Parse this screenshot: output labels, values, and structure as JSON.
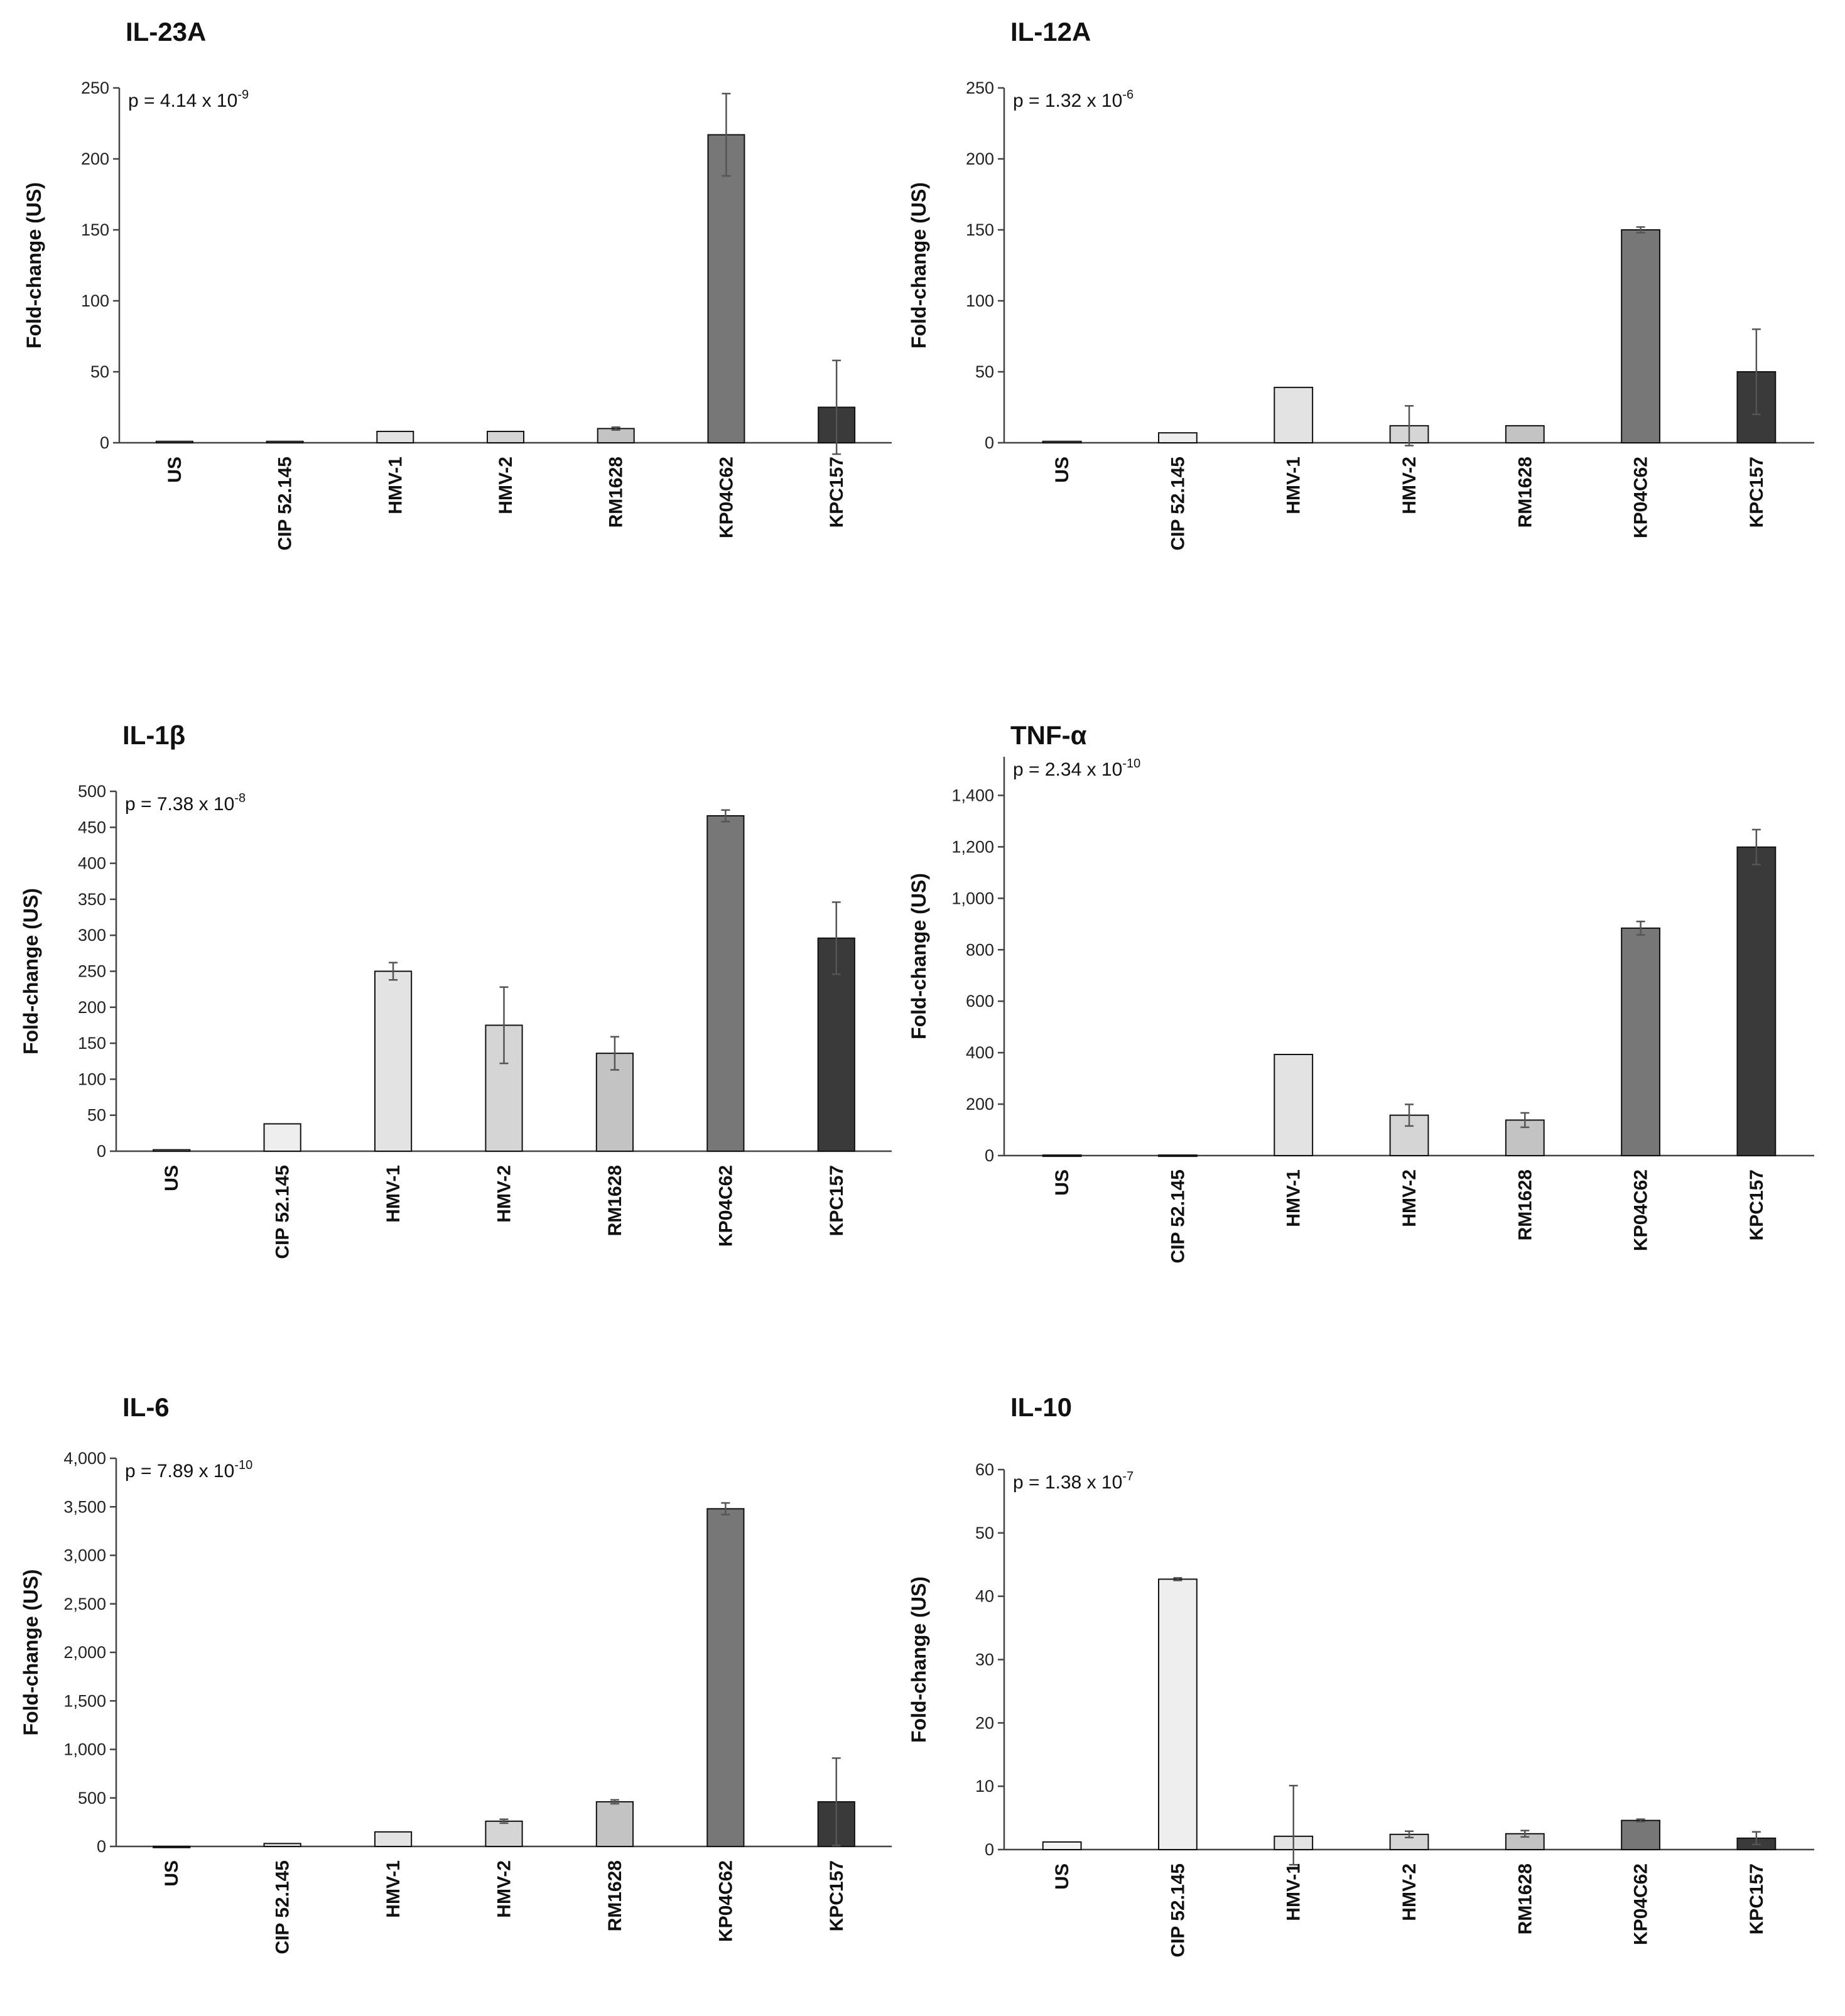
{
  "chart_data": [
    {
      "type": "bar",
      "title": "IL-23A",
      "ylabel": "Fold-change (US)",
      "annotation": {
        "base": "p = 4.14 x 10",
        "exponent": "-9"
      },
      "categories": [
        "US",
        "CIP 52.145",
        "HMV-1",
        "HMV-2",
        "RM1628",
        "KP04C62",
        "KPC157"
      ],
      "values": [
        1,
        1,
        8,
        8,
        10,
        217,
        25
      ],
      "errors": [
        0,
        0,
        0,
        0,
        1,
        29,
        33
      ],
      "ylim": [
        0,
        250
      ],
      "yticks": [
        0,
        50,
        100,
        150,
        200,
        250
      ],
      "ytick_labels": [
        "0",
        "50",
        "100",
        "150",
        "200",
        "250"
      ],
      "bar_colors": [
        "#f3f3f3",
        "#eeeeee",
        "#e3e3e3",
        "#d5d5d5",
        "#c3c3c3",
        "#777777",
        "#3a3a3a"
      ]
    },
    {
      "type": "bar",
      "title": "IL-12A",
      "ylabel": "Fold-change (US)",
      "annotation": {
        "base": "p = 1.32 x 10",
        "exponent": "-6"
      },
      "categories": [
        "US",
        "CIP 52.145",
        "HMV-1",
        "HMV-2",
        "RM1628",
        "KP04C62",
        "KPC157"
      ],
      "values": [
        1,
        7,
        39,
        12,
        12,
        150,
        50
      ],
      "errors": [
        0,
        0,
        0,
        14,
        0,
        2,
        30
      ],
      "ylim": [
        0,
        250
      ],
      "yticks": [
        0,
        50,
        100,
        150,
        200,
        250
      ],
      "ytick_labels": [
        "0",
        "50",
        "100",
        "150",
        "200",
        "250"
      ],
      "bar_colors": [
        "#f3f3f3",
        "#eeeeee",
        "#e3e3e3",
        "#d5d5d5",
        "#c3c3c3",
        "#777777",
        "#3a3a3a"
      ]
    },
    {
      "type": "bar",
      "title": "IL-1β",
      "ylabel": "Fold-change (US)",
      "annotation": {
        "base": "p = 7.38 x 10",
        "exponent": "-8"
      },
      "categories": [
        "US",
        "CIP 52.145",
        "HMV-1",
        "HMV-2",
        "RM1628",
        "KP04C62",
        "KPC157"
      ],
      "values": [
        2,
        38,
        250,
        175,
        136,
        466,
        296
      ],
      "errors": [
        0,
        0,
        12,
        53,
        23,
        8,
        50
      ],
      "ylim": [
        0,
        500
      ],
      "yticks": [
        0,
        50,
        100,
        150,
        200,
        250,
        300,
        350,
        400,
        450,
        500
      ],
      "ytick_labels": [
        "0",
        "50",
        "100",
        "150",
        "200",
        "250",
        "300",
        "350",
        "400",
        "450",
        "500"
      ],
      "bar_colors": [
        "#f3f3f3",
        "#eeeeee",
        "#e3e3e3",
        "#d5d5d5",
        "#c3c3c3",
        "#777777",
        "#3a3a3a"
      ]
    },
    {
      "type": "bar",
      "title": "TNF-α",
      "ylabel": "Fold-change (US)",
      "annotation": {
        "base": "p = 2.34 x 10",
        "exponent": "-10"
      },
      "categories": [
        "US",
        "CIP 52.145",
        "HMV-1",
        "HMV-2",
        "RM1628",
        "KP04C62",
        "KPC157"
      ],
      "values": [
        2,
        2,
        393,
        157,
        138,
        884,
        1199
      ],
      "errors": [
        0,
        0,
        0,
        42,
        28,
        26,
        68
      ],
      "ylim": [
        0,
        1550
      ],
      "yticks": [
        0,
        200,
        400,
        600,
        800,
        1000,
        1200,
        1400
      ],
      "ytick_labels": [
        "0",
        "200",
        "400",
        "600",
        "800",
        "1,000",
        "1,200",
        "1,400"
      ],
      "bar_colors": [
        "#f3f3f3",
        "#eeeeee",
        "#e3e3e3",
        "#d5d5d5",
        "#c3c3c3",
        "#777777",
        "#3a3a3a"
      ]
    },
    {
      "type": "bar",
      "title": "IL-6",
      "ylabel": "Fold-change (US)",
      "annotation": {
        "base": "p = 7.89 x 10",
        "exponent": "-10"
      },
      "categories": [
        "US",
        "CIP 52.145",
        "HMV-1",
        "HMV-2",
        "RM1628",
        "KP04C62",
        "KPC157"
      ],
      "values": [
        1,
        30,
        150,
        260,
        460,
        3480,
        460
      ],
      "errors": [
        0,
        0,
        0,
        20,
        20,
        60,
        450
      ],
      "ylim": [
        0,
        4000
      ],
      "yticks": [
        0,
        500,
        1000,
        1500,
        2000,
        2500,
        3000,
        3500,
        4000
      ],
      "ytick_labels": [
        "0",
        "500",
        "1,000",
        "1,500",
        "2,000",
        "2,500",
        "3,000",
        "3,500",
        "4,000"
      ],
      "bar_colors": [
        "#f3f3f3",
        "#eeeeee",
        "#e3e3e3",
        "#d5d5d5",
        "#c3c3c3",
        "#777777",
        "#3a3a3a"
      ]
    },
    {
      "type": "bar",
      "title": "IL-10",
      "ylabel": "Fold-change (US)",
      "annotation": {
        "base": "p = 1.38 x 10",
        "exponent": "-7"
      },
      "categories": [
        "US",
        "CIP 52.145",
        "HMV-1",
        "HMV-2",
        "RM1628",
        "KP04C62",
        "KPC157"
      ],
      "values": [
        1.2,
        42.7,
        2.1,
        2.4,
        2.5,
        4.6,
        1.8
      ],
      "errors": [
        0,
        0.2,
        8,
        0.5,
        0.5,
        0.2,
        1
      ],
      "ylim": [
        0,
        60
      ],
      "yticks": [
        0,
        10,
        20,
        30,
        40,
        50,
        60
      ],
      "ytick_labels": [
        "0",
        "10",
        "20",
        "30",
        "40",
        "50",
        "60"
      ],
      "bar_colors": [
        "#f3f3f3",
        "#eeeeee",
        "#e3e3e3",
        "#d5d5d5",
        "#c3c3c3",
        "#777777",
        "#3a3a3a"
      ]
    }
  ]
}
